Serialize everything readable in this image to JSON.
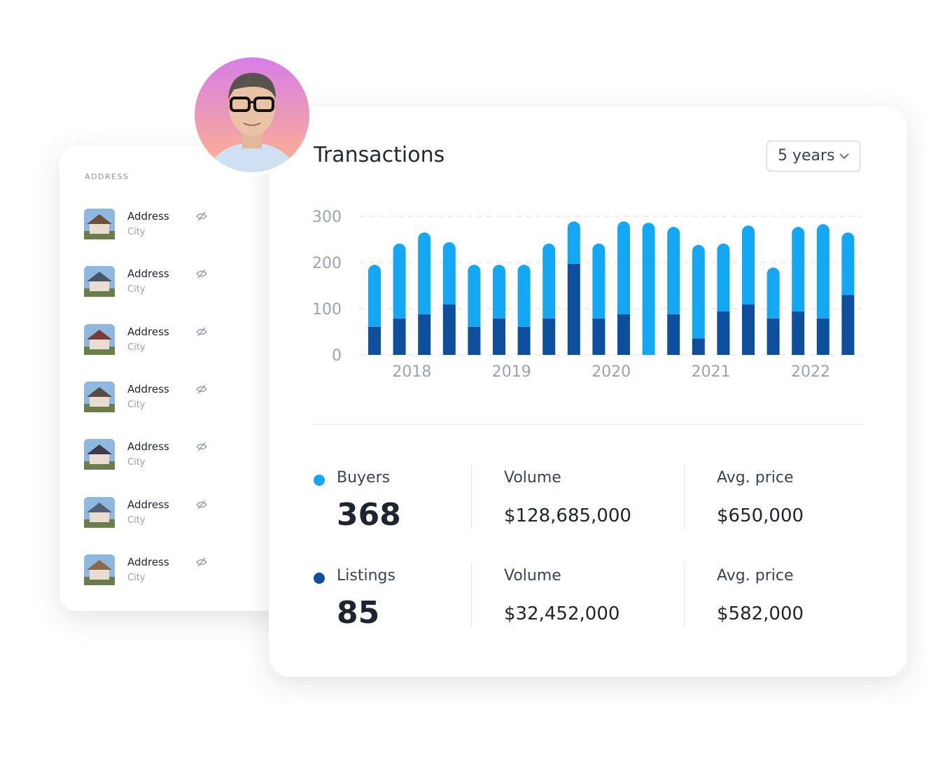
{
  "sidebar": {
    "heading": "ADDRESS",
    "items": [
      {
        "title": "Address",
        "subtitle": "City"
      },
      {
        "title": "Address",
        "subtitle": "City"
      },
      {
        "title": "Address",
        "subtitle": "City"
      },
      {
        "title": "Address",
        "subtitle": "City"
      },
      {
        "title": "Address",
        "subtitle": "City"
      },
      {
        "title": "Address",
        "subtitle": "City"
      },
      {
        "title": "Address",
        "subtitle": "City"
      }
    ]
  },
  "range_select": "5 years",
  "chart_data": {
    "type": "bar",
    "stacked": true,
    "title": "Transactions",
    "categories": [
      "2018",
      "2019",
      "2020",
      "2021",
      "2022"
    ],
    "series": [
      {
        "name": "Buyers",
        "color": "#14a8f4",
        "values": [
          [
            134,
            162,
            177,
            135
          ],
          [
            134,
            116,
            134,
            162
          ],
          [
            92,
            162,
            201,
            286
          ],
          [
            189,
            202,
            147,
            171
          ],
          [
            110,
            183,
            204,
            135
          ]
        ]
      },
      {
        "name": "Listings",
        "color": "#0d4f9c",
        "values": [
          [
            61,
            79,
            88,
            109
          ],
          [
            61,
            79,
            61,
            79
          ],
          [
            197,
            79,
            88,
            0
          ],
          [
            88,
            36,
            94,
            109
          ],
          [
            79,
            94,
            79,
            130
          ]
        ]
      }
    ],
    "ylim": [
      0,
      300
    ],
    "yticks": [
      0,
      100,
      200,
      300
    ],
    "grid": true
  },
  "stats": [
    {
      "count": "368",
      "items": [
        {
          "label": "Volume",
          "value": "$128,685,000"
        },
        {
          "label": "Avg. price",
          "value": "$650,000"
        }
      ]
    },
    {
      "count": "85",
      "items": [
        {
          "label": "Volume",
          "value": "$32,452,000"
        },
        {
          "label": "Avg. price",
          "value": "$582,000"
        }
      ]
    }
  ]
}
